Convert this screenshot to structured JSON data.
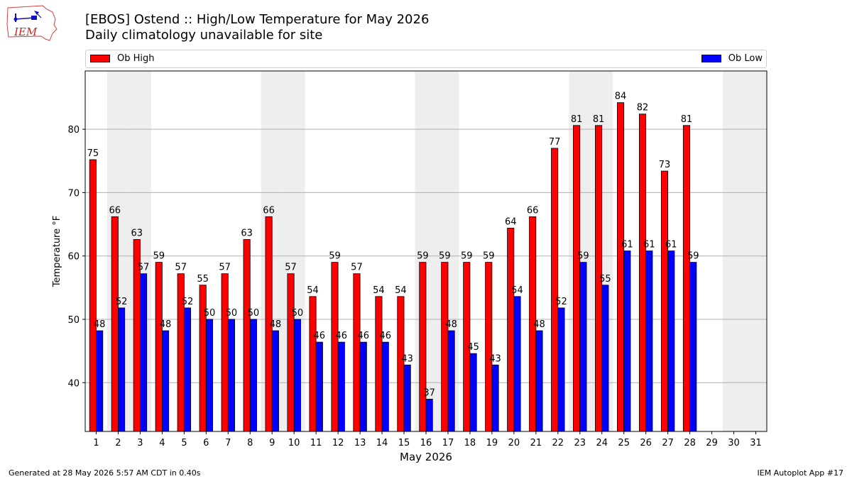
{
  "header": {
    "title": "[EBOS] Ostend :: High/Low Temperature for May 2026",
    "subtitle": "Daily climatology unavailable for site",
    "logo_text": "IEM"
  },
  "footer": {
    "left": "Generated at 28 May 2026 5:57 AM CDT in 0.40s",
    "right": "IEM Autoplot App #17"
  },
  "colors": {
    "high": "#ff0000",
    "low": "#0000ff",
    "weekend_band": "#eeeeee",
    "grid": "#b0b0b0"
  },
  "chart_data": {
    "type": "bar",
    "xlabel": "May 2026",
    "ylabel": "Temperature °F",
    "ylim": [
      32.3,
      89.2
    ],
    "yticks": [
      40,
      50,
      60,
      70,
      80
    ],
    "categories": [
      "1",
      "2",
      "3",
      "4",
      "5",
      "6",
      "7",
      "8",
      "9",
      "10",
      "11",
      "12",
      "13",
      "14",
      "15",
      "16",
      "17",
      "18",
      "19",
      "20",
      "21",
      "22",
      "23",
      "24",
      "25",
      "26",
      "27",
      "28",
      "29",
      "30",
      "31"
    ],
    "weekend_days": [
      2,
      3,
      9,
      10,
      16,
      17,
      23,
      24,
      30,
      31
    ],
    "grid": "horizontal",
    "legend_placement": "top",
    "series": [
      {
        "name": "Ob High",
        "color": "#ff0000",
        "values": [
          75.2,
          66.2,
          62.6,
          59.0,
          57.2,
          55.4,
          57.2,
          62.6,
          66.2,
          57.2,
          53.6,
          59.0,
          57.2,
          53.6,
          53.6,
          59.0,
          59.0,
          59.0,
          59.0,
          64.4,
          66.2,
          77.0,
          80.6,
          80.6,
          84.2,
          82.4,
          73.4,
          80.6,
          null,
          null,
          null
        ],
        "labels": [
          "75",
          "66",
          "63",
          "59",
          "57",
          "55",
          "57",
          "63",
          "66",
          "57",
          "54",
          "59",
          "57",
          "54",
          "54",
          "59",
          "59",
          "59",
          "59",
          "64",
          "66",
          "77",
          "81",
          "81",
          "84",
          "82",
          "73",
          "81",
          "",
          "",
          ""
        ]
      },
      {
        "name": "Ob Low",
        "color": "#0000ff",
        "values": [
          48.2,
          51.8,
          57.2,
          48.2,
          51.8,
          50.0,
          50.0,
          50.0,
          48.2,
          50.0,
          46.4,
          46.4,
          46.4,
          46.4,
          42.8,
          37.4,
          48.2,
          44.6,
          42.8,
          53.6,
          48.2,
          51.8,
          59.0,
          55.4,
          60.8,
          60.8,
          60.8,
          59.0,
          null,
          null,
          null
        ],
        "labels": [
          "48",
          "52",
          "57",
          "48",
          "52",
          "50",
          "50",
          "50",
          "48",
          "50",
          "46",
          "46",
          "46",
          "46",
          "43",
          "37",
          "48",
          "45",
          "43",
          "54",
          "48",
          "52",
          "59",
          "55",
          "61",
          "61",
          "61",
          "59",
          "",
          "",
          ""
        ]
      }
    ]
  }
}
